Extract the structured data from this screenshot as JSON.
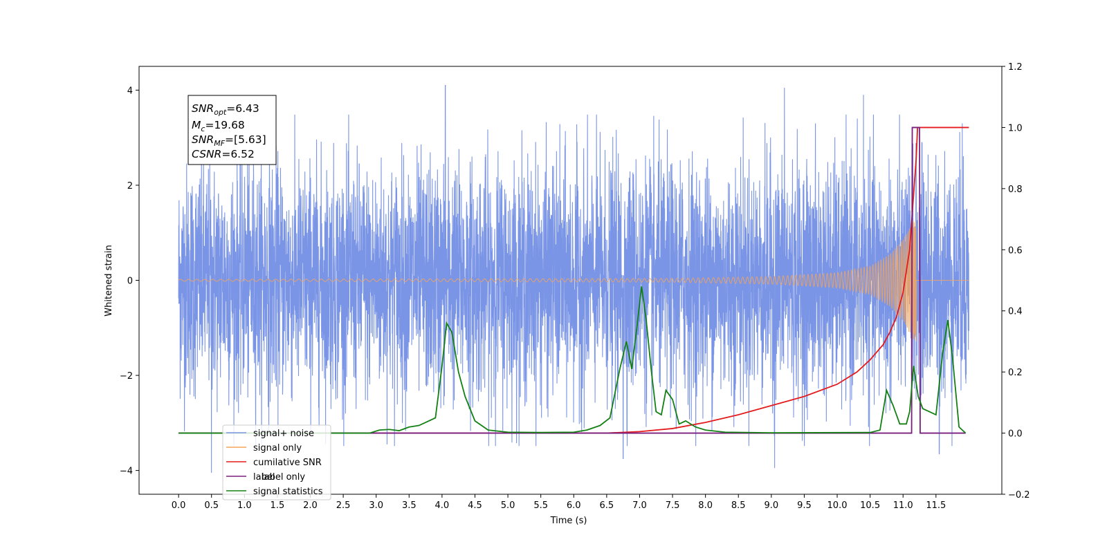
{
  "chart_data": {
    "type": "line",
    "title": "",
    "xlabel": "Time (s)",
    "ylabel": "Whitened strain",
    "xlim": [
      -0.6,
      12.5
    ],
    "ylim": [
      -4.5,
      4.5
    ],
    "y2lim": [
      -0.2,
      1.2
    ],
    "grid": false,
    "legend_position": "lower-left",
    "x_ticks": [
      "0.0",
      "0.5",
      "1.0",
      "1.5",
      "2.0",
      "2.5",
      "3.0",
      "3.5",
      "4.0",
      "4.5",
      "5.0",
      "5.5",
      "6.0",
      "6.5",
      "7.0",
      "7.5",
      "8.0",
      "8.5",
      "9.0",
      "9.5",
      "10.0",
      "10.5",
      "11.0",
      "11.5"
    ],
    "y_ticks": [
      "−4",
      "−2",
      "0",
      "2",
      "4"
    ],
    "y2_ticks": [
      "−0.2",
      "0.0",
      "0.2",
      "0.4",
      "0.6",
      "0.8",
      "1.0",
      "1.2"
    ],
    "annotations": [
      {
        "name": "SNR",
        "sub": "opt",
        "value": "=6.43"
      },
      {
        "name": "M",
        "sub": "c",
        "value": "=19.68"
      },
      {
        "name": "SNR",
        "sub": "MF",
        "value": "=[5.63]"
      },
      {
        "name": "CSNR",
        "sub": "",
        "value": "=6.52"
      }
    ],
    "series": [
      {
        "name": "signal+ noise",
        "color": "#7b95e6",
        "axis": "left",
        "x_range": [
          0.0,
          12.0
        ],
        "envelope": {
          "typical": 2.2,
          "peak": 4.1
        },
        "notable_peaks": [
          [
            4.05,
            4.1
          ],
          [
            9.05,
            -3.95
          ],
          [
            0.5,
            -4.05
          ],
          [
            10.4,
            3.9
          ],
          [
            9.2,
            4.05
          ],
          [
            6.75,
            -3.75
          ],
          [
            11.55,
            -3.65
          ],
          [
            11.9,
            3.3
          ]
        ]
      },
      {
        "name": "signal only",
        "color": "#f5a55a",
        "axis": "left",
        "x_range": [
          0.0,
          12.0
        ],
        "chirp_end": 11.2,
        "amplitude_points": [
          [
            0.0,
            0.02
          ],
          [
            7.5,
            0.04
          ],
          [
            9.0,
            0.08
          ],
          [
            10.0,
            0.16
          ],
          [
            10.5,
            0.3
          ],
          [
            10.8,
            0.55
          ],
          [
            11.0,
            0.85
          ],
          [
            11.15,
            1.25
          ],
          [
            11.2,
            1.3
          ]
        ]
      },
      {
        "name": "cumilative SNR",
        "color": "#e41a1c",
        "axis": "right",
        "points": [
          [
            0.0,
            0.0
          ],
          [
            6.5,
            0.0
          ],
          [
            7.0,
            0.005
          ],
          [
            7.5,
            0.015
          ],
          [
            8.0,
            0.035
          ],
          [
            8.5,
            0.06
          ],
          [
            9.0,
            0.09
          ],
          [
            9.5,
            0.12
          ],
          [
            10.0,
            0.16
          ],
          [
            10.3,
            0.2
          ],
          [
            10.5,
            0.24
          ],
          [
            10.7,
            0.29
          ],
          [
            10.8,
            0.33
          ],
          [
            10.9,
            0.38
          ],
          [
            11.0,
            0.46
          ],
          [
            11.1,
            0.6
          ],
          [
            11.15,
            0.75
          ],
          [
            11.2,
            0.9
          ],
          [
            11.22,
            1.0
          ],
          [
            11.25,
            1.0
          ],
          [
            12.0,
            1.0
          ]
        ]
      },
      {
        "name": "label",
        "color": "#7a1e7e",
        "axis": "right",
        "points": [
          [
            0.0,
            0.0
          ],
          [
            11.13,
            0.0
          ],
          [
            11.14,
            1.0
          ],
          [
            11.25,
            1.0
          ],
          [
            11.26,
            0.0
          ],
          [
            11.95,
            0.0
          ]
        ]
      },
      {
        "name": "signal statistics",
        "color": "#138013",
        "axis": "right",
        "points": [
          [
            0.0,
            0.0
          ],
          [
            2.9,
            0.0
          ],
          [
            3.05,
            0.01
          ],
          [
            3.2,
            0.012
          ],
          [
            3.35,
            0.008
          ],
          [
            3.5,
            0.02
          ],
          [
            3.65,
            0.025
          ],
          [
            3.8,
            0.04
          ],
          [
            3.9,
            0.05
          ],
          [
            4.0,
            0.22
          ],
          [
            4.07,
            0.36
          ],
          [
            4.15,
            0.33
          ],
          [
            4.25,
            0.2
          ],
          [
            4.35,
            0.12
          ],
          [
            4.5,
            0.04
          ],
          [
            4.7,
            0.01
          ],
          [
            5.0,
            0.003
          ],
          [
            5.5,
            0.002
          ],
          [
            6.0,
            0.003
          ],
          [
            6.2,
            0.01
          ],
          [
            6.4,
            0.025
          ],
          [
            6.55,
            0.05
          ],
          [
            6.7,
            0.21
          ],
          [
            6.8,
            0.3
          ],
          [
            6.88,
            0.21
          ],
          [
            6.95,
            0.33
          ],
          [
            7.03,
            0.48
          ],
          [
            7.1,
            0.37
          ],
          [
            7.18,
            0.2
          ],
          [
            7.25,
            0.07
          ],
          [
            7.33,
            0.06
          ],
          [
            7.4,
            0.14
          ],
          [
            7.5,
            0.11
          ],
          [
            7.6,
            0.03
          ],
          [
            7.7,
            0.04
          ],
          [
            7.85,
            0.02
          ],
          [
            8.0,
            0.01
          ],
          [
            8.3,
            0.003
          ],
          [
            9.0,
            0.001
          ],
          [
            10.5,
            0.002
          ],
          [
            10.65,
            0.01
          ],
          [
            10.75,
            0.14
          ],
          [
            10.85,
            0.09
          ],
          [
            10.95,
            0.03
          ],
          [
            11.05,
            0.03
          ],
          [
            11.1,
            0.07
          ],
          [
            11.16,
            0.22
          ],
          [
            11.23,
            0.12
          ],
          [
            11.3,
            0.08
          ],
          [
            11.4,
            0.07
          ],
          [
            11.5,
            0.06
          ],
          [
            11.6,
            0.26
          ],
          [
            11.68,
            0.37
          ],
          [
            11.75,
            0.25
          ],
          [
            11.85,
            0.02
          ],
          [
            11.95,
            0.0
          ]
        ]
      }
    ],
    "legend": [
      "signal+ noise",
      "signal only",
      "cumilative SNR",
      "label",
      "signal statistics"
    ],
    "legend_occluded_text": [
      "label only"
    ]
  }
}
